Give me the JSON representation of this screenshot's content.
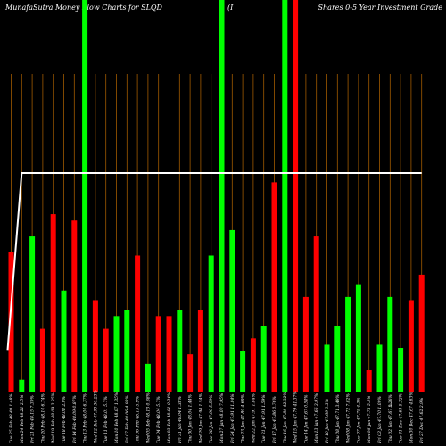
{
  "header": {
    "left": "MunafaSutra  Money Flow  Charts for SLQD",
    "middle": "(I",
    "right": "Shares 0-5 Year Investment Grade"
  },
  "colors": {
    "background": "#000000",
    "grid": "#a05a00",
    "up": "#00ff00",
    "down": "#ff0000",
    "line": "#ffffff"
  },
  "chart_data": {
    "type": "bar",
    "categories": [
      "Tue 25 Feb 48.49 1.48%",
      "Mon 24 Feb 48.21 2.5%",
      "Fri 21 Feb 48.15 7.39%",
      "Thu 20 Feb 48.14 6.74%",
      "Wed 19 Feb 48.09 3.35%",
      "Tue 18 Feb 48.08 2.9%",
      "Fri 14 Feb 48.09 0.87%",
      "Thu 13 Feb 48.04 6.37%",
      "Wed 12 Feb 47.98 36.23%",
      "Tue 11 Feb 48.01 5.7%",
      "Mon 10 Feb 48.07 1.35%",
      "Fri 07 Feb 48.06 4.93%",
      "Thu 06 Feb 48.13 5.9%",
      "Wed 05 Feb 48.13 0.88%",
      "Tue 04 Feb 48.04 5.7%",
      "Mon 03 Feb 48.01 0.34%",
      "Fri 31 Jan 48.04 1.38%",
      "Thu 30 Jan 48.04 1.44%",
      "Wed 29 Jan 47.98 1.54%",
      "Tue 28 Jan 47.99 5.59%",
      "Mon 27 Jan 48.00 7.95%",
      "Fri 24 Jan 47.91 11.84%",
      "Thu 23 Jan 47.89 4.69%",
      "Wed 22 Jan 47.91 1.84%",
      "Tue 21 Jan 47.91 1.59%",
      "Fri 17 Jan 47.86 0.76%",
      "Thu 16 Jan 47.86 42.32%",
      "Wed 15 Jan 47.79 41.37%",
      "Tue 14 Jan 47.67 0.54%",
      "Mon 13 Jan 47.66 3.97%",
      "Fri 10 Jan 47.69 0.3%",
      "Thu 08 Jan 47.71 3.49%",
      "Wed 08 Jan 47.72 7.82%",
      "Tue 07 Jan 47.75 4.3%",
      "Mon 06 Jan 47.73 5.5%",
      "Fri 03 Jan 47.70 1.09%",
      "Thu 02 Jan 47.67 5.26%",
      "Tue 31 Dec 47.68 5.32%",
      "Mon 30 Dec 47.67 4.83%",
      "Fri 27 Dec 47.62 2.9%"
    ],
    "values": [
      0.44,
      0.04,
      0.49,
      0.2,
      0.56,
      0.32,
      0.54,
      1.0,
      0.29,
      0.2,
      0.24,
      0.26,
      0.43,
      0.09,
      0.24,
      0.24,
      0.26,
      0.12,
      0.26,
      0.43,
      1.0,
      0.51,
      0.13,
      0.17,
      0.21,
      0.66,
      1.0,
      0.95,
      0.3,
      0.49,
      0.15,
      0.21,
      0.3,
      0.34,
      0.07,
      0.15,
      0.3,
      0.14,
      0.29,
      0.37
    ],
    "directions": [
      "down",
      "up",
      "up",
      "down",
      "down",
      "up",
      "down",
      "up",
      "down",
      "down",
      "up",
      "up",
      "down",
      "up",
      "down",
      "down",
      "up",
      "down",
      "down",
      "up",
      "up",
      "up",
      "up",
      "down",
      "up",
      "down",
      "up",
      "down",
      "down",
      "down",
      "up",
      "up",
      "up",
      "up",
      "down",
      "up",
      "up",
      "up",
      "down",
      "down"
    ],
    "line_values": [
      0.19,
      0.98,
      0.98,
      0.98,
      0.98,
      0.98,
      0.98,
      0.98,
      0.98,
      0.98,
      0.98,
      0.98,
      0.98,
      0.98,
      0.98,
      0.98,
      0.98,
      0.98,
      0.98,
      0.98,
      0.98,
      0.98,
      0.98,
      0.98,
      0.98,
      0.98,
      0.98,
      0.98,
      0.98,
      0.98,
      0.98,
      0.98,
      0.98,
      0.98,
      0.98,
      0.98,
      0.98,
      0.98,
      0.98,
      0.98
    ],
    "overflow_bars": [
      7,
      20,
      26,
      27
    ],
    "extra_tick_label": "0",
    "ylim": [
      0,
      1
    ],
    "grid": true,
    "title": "",
    "xlabel": "",
    "ylabel": ""
  }
}
